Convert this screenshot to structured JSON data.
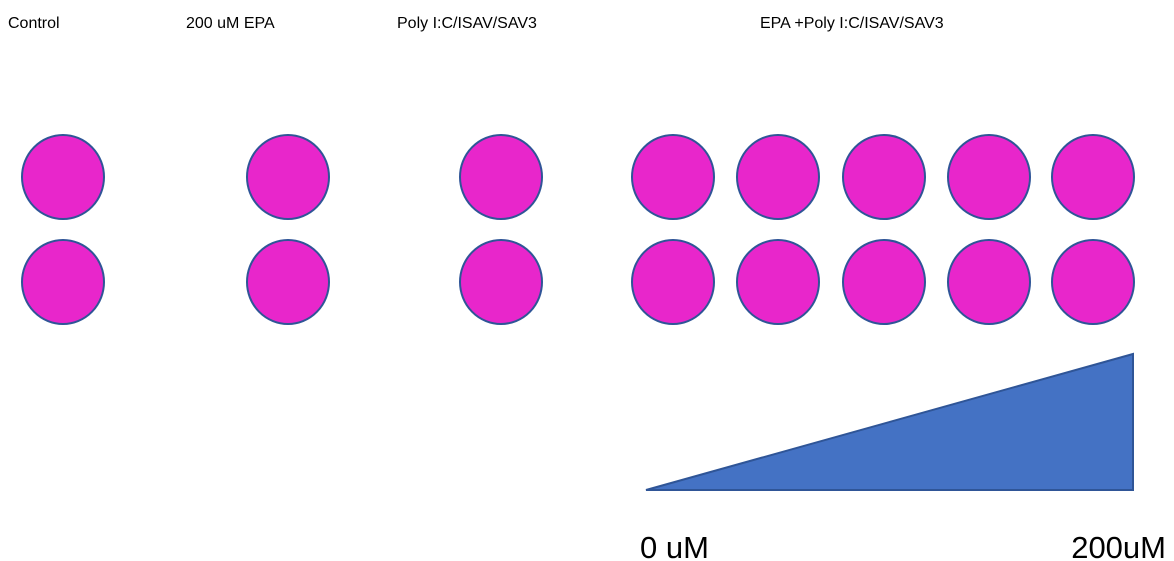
{
  "groups": [
    {
      "label": "Control"
    },
    {
      "label": "200 uM EPA"
    },
    {
      "label": "Poly I:C/ISAV/SAV3"
    },
    {
      "label": "EPA +Poly I:C/ISAV/SAV3"
    }
  ],
  "gradient": {
    "start_label": "0 uM",
    "end_label": "200uM"
  }
}
